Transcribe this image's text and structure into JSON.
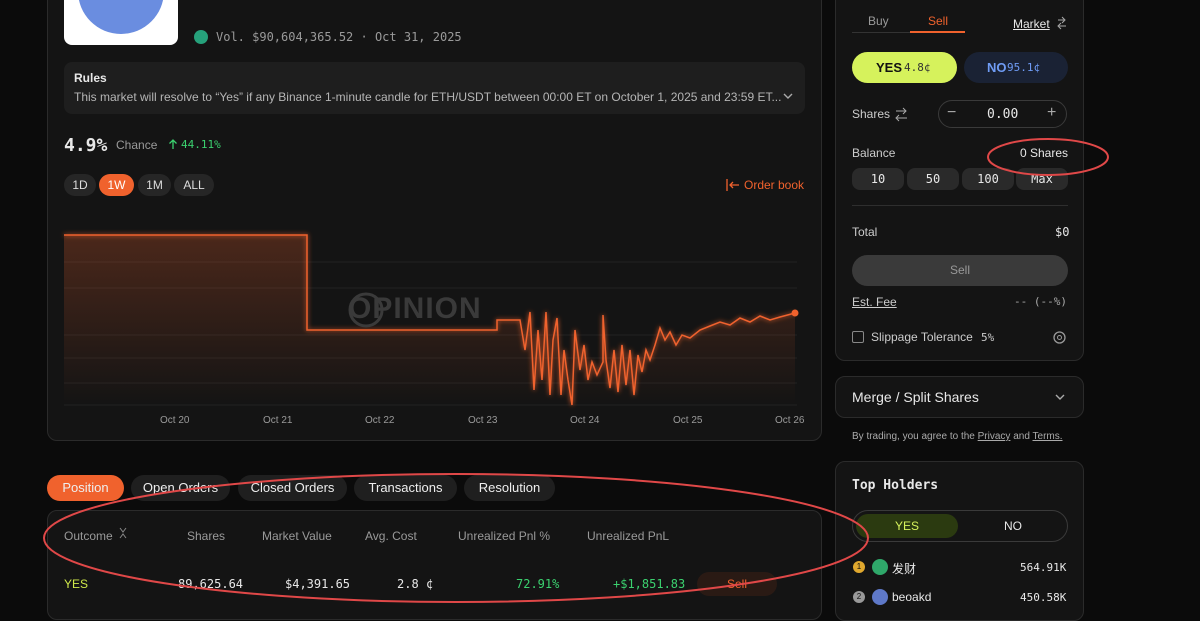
{
  "market": {
    "volume": "Vol. $90,604,365.52 · Oct 31, 2025"
  },
  "rules": {
    "title": "Rules",
    "text": "This market will resolve to “Yes” if any Binance 1-minute candle for ETH/USDT between 00:00 ET on October 1, 2025 and 23:59 ET..."
  },
  "chance": {
    "value": "4.9%",
    "label": "Chance",
    "change": "44.11%"
  },
  "timeframes": [
    "1D",
    "1W",
    "1M",
    "ALL"
  ],
  "order_book": "Order book",
  "chart": {
    "watermark": "OPINION",
    "x_labels": [
      "Oct 20",
      "Oct 21",
      "Oct 22",
      "Oct 23",
      "Oct 24",
      "Oct 25",
      "Oct 26"
    ]
  },
  "tabs": [
    "Position",
    "Open Orders",
    "Closed Orders",
    "Transactions",
    "Resolution"
  ],
  "table": {
    "columns": [
      "Outcome",
      "Shares",
      "Market Value",
      "Avg. Cost",
      "Unrealized Pnl %",
      "Unrealized PnL"
    ],
    "rows": [
      [
        "YES",
        "89,625.64",
        "$4,391.65",
        "2.8 ¢",
        "72.91%",
        "+$1,851.83"
      ]
    ],
    "row_action": "Sell"
  },
  "trade": {
    "sides": [
      "Buy",
      "Sell"
    ],
    "order_type": "Market",
    "yes": {
      "label": "YES",
      "price": "4.8¢"
    },
    "no": {
      "label": "NO",
      "price": "95.1¢"
    },
    "shares_label": "Shares",
    "shares_value": "0.00",
    "balance_label": "Balance",
    "balance_value": "0 Shares",
    "quick": [
      "10",
      "50",
      "100",
      "Max"
    ],
    "total_label": "Total",
    "total_value": "$0",
    "submit": "Sell",
    "fee_label": "Est. Fee",
    "fee_value": "-- (--%)",
    "slippage_label": "Slippage Tolerance",
    "slippage_value": "5%"
  },
  "merge": "Merge / Split Shares",
  "terms": {
    "prefix": "By trading, you agree to the",
    "privacy": "Privacy",
    "and": "and",
    "terms": "Terms."
  },
  "holders": {
    "title": "Top Holders",
    "tabs": [
      "YES",
      "NO"
    ],
    "rows": [
      {
        "rank": "1",
        "name": "发财",
        "amount": "564.91K"
      },
      {
        "rank": "2",
        "name": "beoakd",
        "amount": "450.58K"
      }
    ]
  }
}
